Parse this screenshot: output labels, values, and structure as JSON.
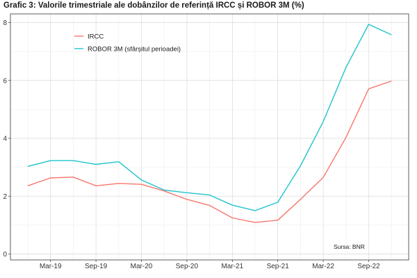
{
  "chart_data": {
    "type": "line",
    "title": "Grafic 3: Valorile trimestriale ale dobânzilor de referință IRCC și ROBOR 3M (%)",
    "xlabel": "",
    "ylabel": "",
    "x_tick_labels": [
      "Mar-19",
      "Sep-19",
      "Mar-20",
      "Sep-20",
      "Mar-21",
      "Sep-21",
      "Mar-22",
      "Sep-22"
    ],
    "x": [
      "Dec-18",
      "Mar-19",
      "Jun-19",
      "Sep-19",
      "Dec-19",
      "Mar-20",
      "Jun-20",
      "Sep-20",
      "Dec-20",
      "Mar-21",
      "Jun-21",
      "Sep-21",
      "Dec-21",
      "Mar-22",
      "Jun-22",
      "Sep-22",
      "Dec-22"
    ],
    "ylim": [
      0,
      8
    ],
    "y_ticks": [
      0,
      2,
      4,
      6,
      8
    ],
    "grid": true,
    "legend_position": "top-left",
    "series": [
      {
        "name": "IRCC",
        "color": "#f8766d",
        "values": [
          2.36,
          2.63,
          2.66,
          2.36,
          2.44,
          2.41,
          2.18,
          1.89,
          1.68,
          1.25,
          1.09,
          1.17,
          1.89,
          2.65,
          4.03,
          5.71,
          5.98
        ]
      },
      {
        "name": "ROBOR 3M (sfârșitul perioadei)",
        "color": "#1fc3cd",
        "values": [
          3.03,
          3.23,
          3.23,
          3.1,
          3.19,
          2.56,
          2.21,
          2.12,
          2.04,
          1.69,
          1.5,
          1.79,
          3.05,
          4.58,
          6.45,
          7.94,
          7.58
        ]
      }
    ],
    "annotation": "Sursa: BNR"
  }
}
